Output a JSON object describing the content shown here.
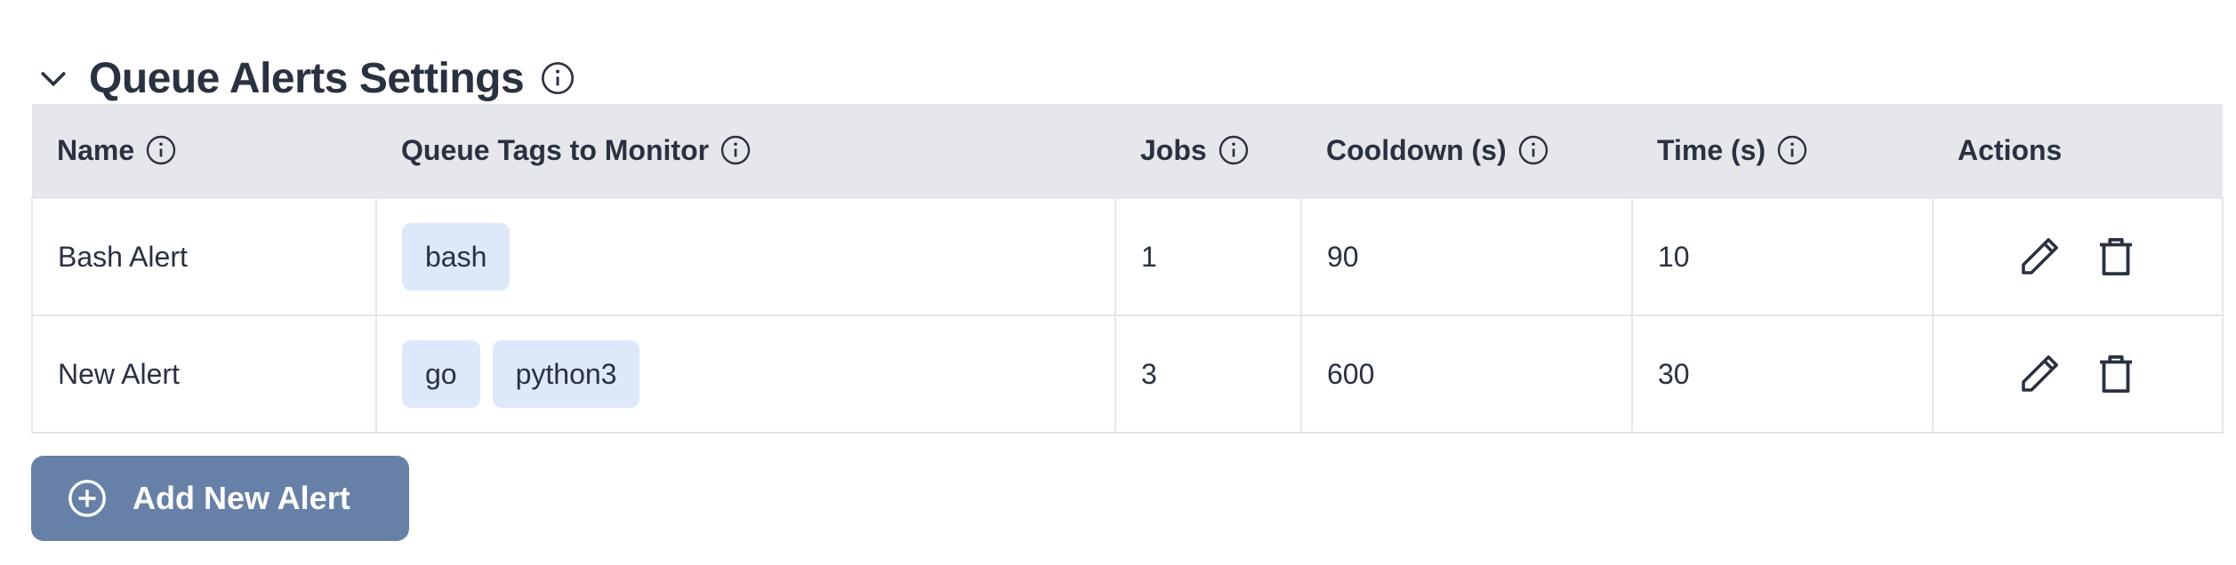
{
  "section": {
    "title": "Queue Alerts Settings",
    "collapse_icon": "chevron-down-icon",
    "info_icon": "info-circle-icon"
  },
  "table": {
    "headers": [
      {
        "label": "Name",
        "info": true
      },
      {
        "label": "Queue Tags to Monitor",
        "info": true
      },
      {
        "label": "Jobs",
        "info": true
      },
      {
        "label": "Cooldown (s)",
        "info": true
      },
      {
        "label": "Time (s)",
        "info": true
      },
      {
        "label": "Actions",
        "info": false
      }
    ],
    "rows": [
      {
        "name": "Bash Alert",
        "tags": [
          "bash"
        ],
        "jobs": "1",
        "cooldown": "90",
        "time": "10"
      },
      {
        "name": "New Alert",
        "tags": [
          "go",
          "python3"
        ],
        "jobs": "3",
        "cooldown": "600",
        "time": "30"
      }
    ],
    "action_icons": [
      "pencil-icon",
      "trash-icon"
    ]
  },
  "add_button": {
    "label": "Add New Alert",
    "icon": "plus-circle-icon"
  },
  "colors": {
    "header_bg": "#e5e7eb",
    "tag_bg": "#dde8fa",
    "button_bg": "#6680a8",
    "text": "#2a3140"
  }
}
